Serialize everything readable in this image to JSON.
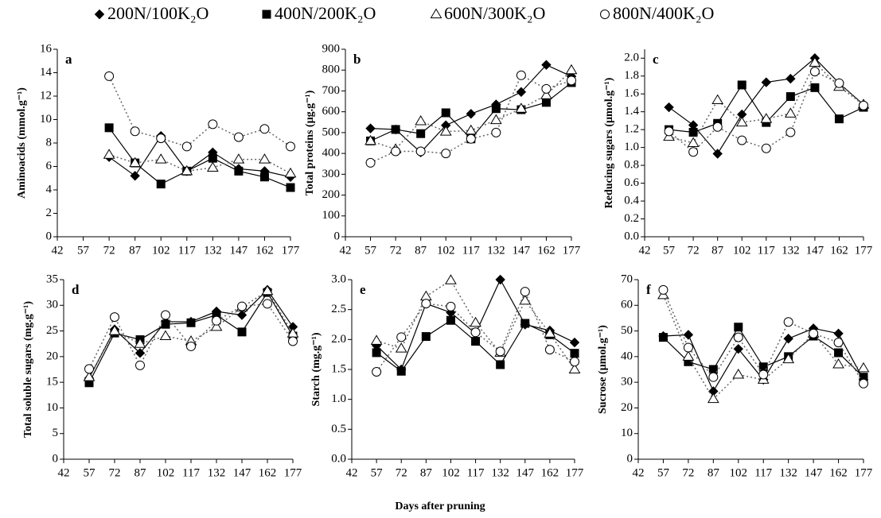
{
  "chart_data": [
    {
      "type": "line",
      "label": "a",
      "ylabel": "Aminoacids (mmol.g⁻¹)",
      "x": [
        72,
        87,
        102,
        117,
        132,
        147,
        162,
        177
      ],
      "xlim": [
        42,
        177
      ],
      "xticks": [
        42,
        57,
        72,
        87,
        102,
        117,
        132,
        147,
        162,
        177
      ],
      "ylim": [
        0,
        16
      ],
      "yticks": [
        0,
        2,
        4,
        6,
        8,
        10,
        12,
        14,
        16
      ],
      "series": [
        {
          "name": "200N/100K₂O",
          "color": "#000000",
          "marker": "diamond",
          "line": "solid",
          "values": [
            6.8,
            5.2,
            8.6,
            5.6,
            7.2,
            5.8,
            5.6,
            5.1
          ]
        },
        {
          "name": "400N/200K₂O",
          "color": "#000000",
          "marker": "square",
          "line": "solid",
          "values": [
            9.3,
            6.3,
            4.5,
            5.6,
            6.7,
            5.6,
            5.1,
            4.2
          ]
        },
        {
          "name": "600N/300K₂O",
          "color": "#666666",
          "marker": "triangle",
          "line": "dotted",
          "values": [
            7.0,
            6.3,
            6.6,
            5.6,
            5.9,
            6.6,
            6.6,
            5.4
          ]
        },
        {
          "name": "800N/400K₂O",
          "color": "#666666",
          "marker": "circle",
          "line": "dotted",
          "values": [
            13.7,
            9.0,
            8.4,
            7.7,
            9.6,
            8.5,
            9.2,
            7.7
          ]
        }
      ]
    },
    {
      "type": "line",
      "label": "b",
      "ylabel": "Total proteins (µg.g⁻¹)",
      "x": [
        57,
        72,
        87,
        102,
        117,
        132,
        147,
        162,
        177
      ],
      "xlim": [
        42,
        177
      ],
      "xticks": [
        42,
        57,
        72,
        87,
        102,
        117,
        132,
        147,
        162,
        177
      ],
      "ylim": [
        0,
        900
      ],
      "yticks": [
        0,
        100,
        200,
        300,
        400,
        500,
        600,
        700,
        800,
        900
      ],
      "series": [
        {
          "color": "#000000",
          "marker": "diamond",
          "line": "solid",
          "values": [
            520,
            515,
            405,
            535,
            590,
            635,
            695,
            825,
            770
          ]
        },
        {
          "color": "#000000",
          "marker": "square",
          "line": "solid",
          "values": [
            460,
            515,
            495,
            595,
            470,
            615,
            610,
            645,
            740
          ]
        },
        {
          "color": "#666666",
          "marker": "triangle",
          "line": "dotted",
          "values": [
            460,
            420,
            555,
            505,
            510,
            560,
            615,
            680,
            800
          ]
        },
        {
          "color": "#666666",
          "marker": "circle",
          "line": "dotted",
          "values": [
            355,
            410,
            410,
            400,
            470,
            500,
            775,
            710,
            750
          ]
        }
      ]
    },
    {
      "type": "line",
      "label": "c",
      "ylabel": "Reducing sugars (µmol.g⁻¹)",
      "x": [
        57,
        72,
        87,
        102,
        117,
        132,
        147,
        162,
        177
      ],
      "xlim": [
        42,
        177
      ],
      "xticks": [
        42,
        57,
        72,
        87,
        102,
        117,
        132,
        147,
        162,
        177
      ],
      "ylim": [
        0,
        2.1
      ],
      "yticks": [
        {
          "value": 0,
          "label": "0.0"
        },
        0.2,
        0.4,
        0.6,
        0.8,
        {
          "value": 1,
          "label": "1.0"
        },
        1.2,
        1.4,
        1.6,
        1.8,
        {
          "value": 2,
          "label": "2.0"
        }
      ],
      "series": [
        {
          "color": "#000000",
          "marker": "diamond",
          "line": "solid",
          "values": [
            1.45,
            1.25,
            0.93,
            1.37,
            1.73,
            1.77,
            2.0,
            1.72,
            1.48
          ]
        },
        {
          "color": "#000000",
          "marker": "square",
          "line": "solid",
          "values": [
            1.2,
            1.17,
            1.27,
            1.7,
            1.28,
            1.57,
            1.67,
            1.32,
            1.45
          ]
        },
        {
          "color": "#666666",
          "marker": "triangle",
          "line": "dotted",
          "values": [
            1.12,
            1.05,
            1.53,
            1.28,
            1.32,
            1.38,
            1.95,
            1.68,
            1.48
          ]
        },
        {
          "color": "#666666",
          "marker": "circle",
          "line": "dotted",
          "values": [
            1.18,
            0.95,
            1.23,
            1.08,
            0.99,
            1.17,
            1.85,
            1.72,
            1.47
          ]
        }
      ]
    },
    {
      "type": "line",
      "label": "d",
      "ylabel": "Total soluble sugars (mg.g⁻¹)",
      "x": [
        57,
        72,
        87,
        102,
        117,
        132,
        147,
        162,
        177
      ],
      "xlim": [
        42,
        177
      ],
      "xticks": [
        42,
        57,
        72,
        87,
        102,
        117,
        132,
        147,
        162,
        177
      ],
      "ylim": [
        0,
        35
      ],
      "yticks": [
        0,
        5,
        10,
        15,
        20,
        25,
        30,
        35
      ],
      "series": [
        {
          "color": "#000000",
          "marker": "diamond",
          "line": "solid",
          "values": [
            15.8,
            25.3,
            20.7,
            26.8,
            26.8,
            28.8,
            28.1,
            33.0,
            25.8
          ]
        },
        {
          "color": "#000000",
          "marker": "square",
          "line": "solid",
          "values": [
            14.9,
            24.6,
            23.3,
            26.3,
            26.6,
            28.1,
            24.8,
            32.5,
            24.0
          ]
        },
        {
          "color": "#666666",
          "marker": "triangle",
          "line": "dotted",
          "values": [
            16.0,
            25.0,
            22.5,
            24.0,
            23.0,
            25.8,
            29.6,
            32.8,
            24.5
          ]
        },
        {
          "color": "#666666",
          "marker": "circle",
          "line": "dotted",
          "values": [
            17.6,
            27.7,
            18.3,
            28.1,
            22.0,
            27.0,
            29.8,
            30.3,
            23.0
          ]
        }
      ]
    },
    {
      "type": "line",
      "label": "e",
      "ylabel": "Starch (mg.g⁻¹)",
      "xlabel": "Days after pruning",
      "x": [
        57,
        72,
        87,
        102,
        117,
        132,
        147,
        162,
        177
      ],
      "xlim": [
        42,
        177
      ],
      "xticks": [
        42,
        57,
        72,
        87,
        102,
        117,
        132,
        147,
        162,
        177
      ],
      "ylim": [
        0,
        3
      ],
      "yticks": [
        {
          "value": 0,
          "label": "0.0"
        },
        0.5,
        {
          "value": 1,
          "label": "1.0"
        },
        1.5,
        {
          "value": 2,
          "label": "2.0"
        },
        2.5,
        {
          "value": 3,
          "label": "3.0"
        }
      ],
      "series": [
        {
          "color": "#000000",
          "marker": "diamond",
          "line": "solid",
          "values": [
            1.9,
            1.5,
            2.6,
            2.45,
            2.1,
            3.0,
            2.25,
            2.15,
            1.95
          ]
        },
        {
          "color": "#000000",
          "marker": "square",
          "line": "solid",
          "values": [
            1.78,
            1.47,
            2.05,
            2.32,
            1.97,
            1.58,
            2.27,
            2.08,
            1.77
          ]
        },
        {
          "color": "#666666",
          "marker": "triangle",
          "line": "dotted",
          "values": [
            1.98,
            1.85,
            2.72,
            2.99,
            2.28,
            1.78,
            2.65,
            2.1,
            1.5
          ]
        },
        {
          "color": "#666666",
          "marker": "circle",
          "line": "dotted",
          "values": [
            1.46,
            2.04,
            2.6,
            2.55,
            2.12,
            1.8,
            2.8,
            1.83,
            1.63
          ]
        }
      ]
    },
    {
      "type": "line",
      "label": "f",
      "ylabel": "Sucrose (µmol.g⁻¹)",
      "x": [
        57,
        72,
        87,
        102,
        117,
        132,
        147,
        162,
        177
      ],
      "xlim": [
        42,
        177
      ],
      "xticks": [
        42,
        57,
        72,
        87,
        102,
        117,
        132,
        147,
        162,
        177
      ],
      "ylim": [
        0,
        70
      ],
      "yticks": [
        0,
        10,
        20,
        30,
        40,
        50,
        60,
        70
      ],
      "series": [
        {
          "color": "#000000",
          "marker": "diamond",
          "line": "solid",
          "values": [
            48,
            48.5,
            26.5,
            43,
            31,
            47,
            51,
            49,
            31
          ]
        },
        {
          "color": "#000000",
          "marker": "square",
          "line": "solid",
          "values": [
            47.5,
            38,
            35,
            51.5,
            36,
            40,
            48,
            41.5,
            32
          ]
        },
        {
          "color": "#666666",
          "marker": "triangle",
          "line": "dotted",
          "values": [
            64,
            40,
            23.5,
            33,
            31,
            39,
            49,
            37,
            35.5
          ]
        },
        {
          "color": "#666666",
          "marker": "circle",
          "line": "dotted",
          "values": [
            66,
            43.5,
            32,
            47.5,
            33,
            53.5,
            49,
            45.5,
            29.5
          ]
        }
      ]
    }
  ]
}
